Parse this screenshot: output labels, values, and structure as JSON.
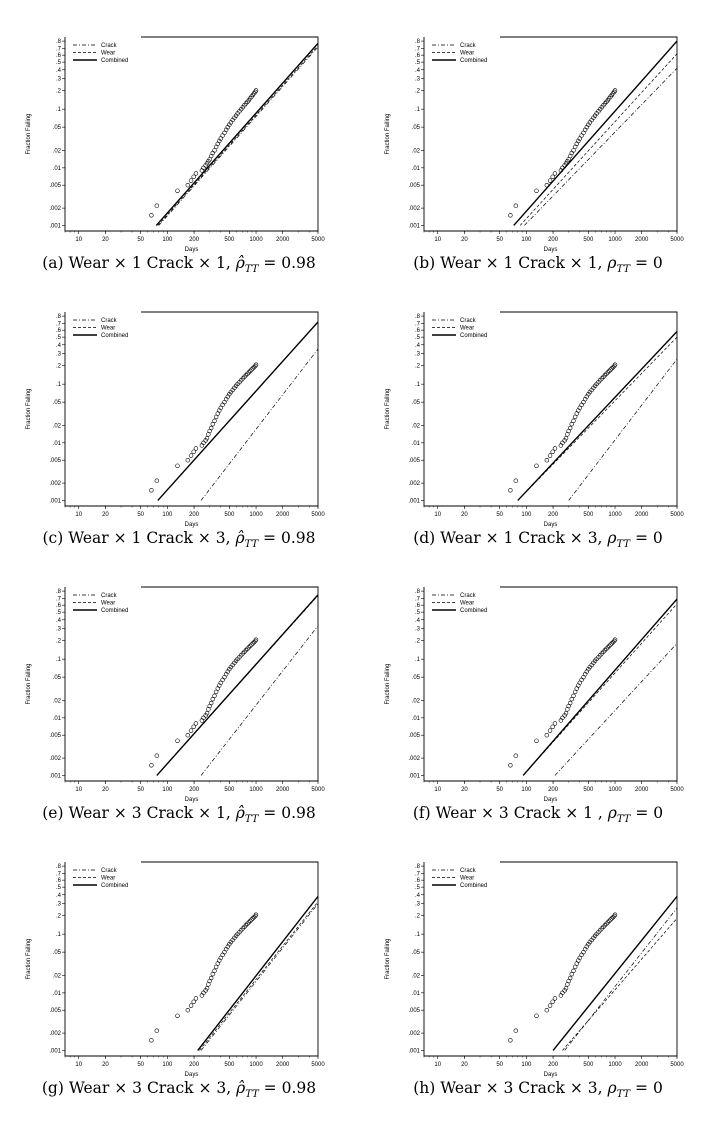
{
  "figure": {
    "panels": [
      {
        "caption": "(a) Wear × 1 Crack × 1, ρ̂TT = 0.98"
      },
      {
        "caption": "(b) Wear × 1 Crack × 1, ρTT = 0"
      },
      {
        "caption": "(c) Wear × 1 Crack × 3, ρ̂TT = 0.98"
      },
      {
        "caption": "(d) Wear × 1 Crack × 3, ρTT = 0"
      },
      {
        "caption": "(e) Wear × 3 Crack × 1, ρ̂TT = 0.98"
      },
      {
        "caption": "(f) Wear × 3 Crack × 1 , ρTT = 0"
      },
      {
        "caption": "(g) Wear × 3 Crack × 3, ρ̂TT = 0.98"
      },
      {
        "caption": "(h) Wear × 3 Crack × 3, ρTT = 0"
      }
    ]
  },
  "chart_data": [
    {
      "type": "scatter",
      "xlabel": "Days",
      "ylabel": "Fraction Failing",
      "xscale": "log",
      "yscale": "weibull",
      "xlim": [
        7,
        5000
      ],
      "ylim": [
        0.0008,
        0.85
      ],
      "x_ticks": [
        "10",
        "20",
        "50",
        "100",
        "200",
        "500",
        "1000",
        "2000",
        "5000"
      ],
      "y_ticks": [
        ".8",
        ".7",
        ".6",
        ".5",
        ".4",
        ".3",
        ".2",
        ".1",
        ".05",
        ".02",
        ".01",
        ".005",
        ".002",
        ".001"
      ],
      "legend": [
        "Crack",
        "Wear",
        "Combined"
      ],
      "legend_position": "top-left",
      "series": [
        {
          "name": "Crack",
          "style": "dash-dot",
          "x": [
            80,
            5000
          ],
          "y": [
            0.001,
            0.72
          ]
        },
        {
          "name": "Wear",
          "style": "dashed",
          "x": [
            78,
            5000
          ],
          "y": [
            0.001,
            0.74
          ]
        },
        {
          "name": "Combined",
          "style": "solid",
          "x": [
            75,
            5000
          ],
          "y": [
            0.001,
            0.77
          ]
        }
      ],
      "points_profile": "A"
    },
    {
      "type": "scatter",
      "xlabel": "Days",
      "ylabel": "Fraction Failing",
      "xscale": "log",
      "yscale": "weibull",
      "xlim": [
        7,
        5000
      ],
      "ylim": [
        0.0008,
        0.85
      ],
      "x_ticks": [
        "10",
        "20",
        "50",
        "100",
        "200",
        "500",
        "1000",
        "2000",
        "5000"
      ],
      "y_ticks": [
        ".8",
        ".7",
        ".6",
        ".5",
        ".4",
        ".3",
        ".2",
        ".1",
        ".05",
        ".02",
        ".01",
        ".005",
        ".002",
        ".001"
      ],
      "legend": [
        "Crack",
        "Wear",
        "Combined"
      ],
      "legend_position": "top-left",
      "series": [
        {
          "name": "Crack",
          "style": "dash-dot",
          "x": [
            95,
            5000
          ],
          "y": [
            0.001,
            0.42
          ]
        },
        {
          "name": "Wear",
          "style": "dashed",
          "x": [
            85,
            5000
          ],
          "y": [
            0.001,
            0.62
          ]
        },
        {
          "name": "Combined",
          "style": "solid",
          "x": [
            72,
            5000
          ],
          "y": [
            0.001,
            0.8
          ]
        }
      ],
      "points_profile": "A"
    },
    {
      "type": "scatter",
      "xlabel": "Days",
      "ylabel": "Fraction Failing",
      "xscale": "log",
      "yscale": "weibull",
      "xlim": [
        7,
        5000
      ],
      "ylim": [
        0.0008,
        0.85
      ],
      "x_ticks": [
        "10",
        "20",
        "50",
        "100",
        "200",
        "500",
        "1000",
        "2000",
        "5000"
      ],
      "y_ticks": [
        ".8",
        ".7",
        ".6",
        ".5",
        ".4",
        ".3",
        ".2",
        ".1",
        ".05",
        ".02",
        ".01",
        ".005",
        ".002",
        ".001"
      ],
      "legend": [
        "Crack",
        "Wear",
        "Combined"
      ],
      "legend_position": "top-left",
      "series": [
        {
          "name": "Crack",
          "style": "dash-dot",
          "x": [
            240,
            5000
          ],
          "y": [
            0.001,
            0.35
          ]
        },
        {
          "name": "Wear",
          "style": "dashed",
          "x": [
            78,
            5000
          ],
          "y": [
            0.001,
            0.72
          ]
        },
        {
          "name": "Combined",
          "style": "solid",
          "x": [
            78,
            5000
          ],
          "y": [
            0.001,
            0.72
          ]
        }
      ],
      "points_profile": "B"
    },
    {
      "type": "scatter",
      "xlabel": "Days",
      "ylabel": "Fraction Failing",
      "xscale": "log",
      "yscale": "weibull",
      "xlim": [
        7,
        5000
      ],
      "ylim": [
        0.0008,
        0.85
      ],
      "x_ticks": [
        "10",
        "20",
        "50",
        "100",
        "200",
        "500",
        "1000",
        "2000",
        "5000"
      ],
      "y_ticks": [
        ".8",
        ".7",
        ".6",
        ".5",
        ".4",
        ".3",
        ".2",
        ".1",
        ".05",
        ".02",
        ".01",
        ".005",
        ".002",
        ".001"
      ],
      "legend": [
        "Crack",
        "Wear",
        "Combined"
      ],
      "legend_position": "top-left",
      "series": [
        {
          "name": "Crack",
          "style": "dash-dot",
          "x": [
            300,
            5000
          ],
          "y": [
            0.001,
            0.25
          ]
        },
        {
          "name": "Wear",
          "style": "dashed",
          "x": [
            80,
            5000
          ],
          "y": [
            0.001,
            0.5
          ]
        },
        {
          "name": "Combined",
          "style": "solid",
          "x": [
            80,
            5000
          ],
          "y": [
            0.001,
            0.58
          ]
        }
      ],
      "points_profile": "B"
    },
    {
      "type": "scatter",
      "xlabel": "Days",
      "ylabel": "Fraction Failing",
      "xscale": "log",
      "yscale": "weibull",
      "xlim": [
        7,
        5000
      ],
      "ylim": [
        0.0008,
        0.85
      ],
      "x_ticks": [
        "10",
        "20",
        "50",
        "100",
        "200",
        "500",
        "1000",
        "2000",
        "5000"
      ],
      "y_ticks": [
        ".8",
        ".7",
        ".6",
        ".5",
        ".4",
        ".3",
        ".2",
        ".1",
        ".05",
        ".02",
        ".01",
        ".005",
        ".002",
        ".001"
      ],
      "legend": [
        "Crack",
        "Wear",
        "Combined"
      ],
      "legend_position": "top-left",
      "series": [
        {
          "name": "Crack",
          "style": "dash-dot",
          "x": [
            240,
            5000
          ],
          "y": [
            0.001,
            0.33
          ]
        },
        {
          "name": "Wear",
          "style": "dashed",
          "x": [
            76,
            5000
          ],
          "y": [
            0.001,
            0.74
          ]
        },
        {
          "name": "Combined",
          "style": "solid",
          "x": [
            76,
            5000
          ],
          "y": [
            0.001,
            0.75
          ]
        }
      ],
      "points_profile": "B"
    },
    {
      "type": "scatter",
      "xlabel": "Days",
      "ylabel": "Fraction Failing",
      "xscale": "log",
      "yscale": "weibull",
      "xlim": [
        7,
        5000
      ],
      "ylim": [
        0.0008,
        0.85
      ],
      "x_ticks": [
        "10",
        "20",
        "50",
        "100",
        "200",
        "500",
        "1000",
        "2000",
        "5000"
      ],
      "y_ticks": [
        ".8",
        ".7",
        ".6",
        ".5",
        ".4",
        ".3",
        ".2",
        ".1",
        ".05",
        ".02",
        ".01",
        ".005",
        ".002",
        ".001"
      ],
      "legend": [
        "Crack",
        "Wear",
        "Combined"
      ],
      "legend_position": "top-left",
      "series": [
        {
          "name": "Crack",
          "style": "dash-dot",
          "x": [
            210,
            5000
          ],
          "y": [
            0.001,
            0.18
          ]
        },
        {
          "name": "Wear",
          "style": "dashed",
          "x": [
            92,
            5000
          ],
          "y": [
            0.001,
            0.62
          ]
        },
        {
          "name": "Combined",
          "style": "solid",
          "x": [
            92,
            5000
          ],
          "y": [
            0.001,
            0.69
          ]
        }
      ],
      "points_profile": "B"
    },
    {
      "type": "scatter",
      "xlabel": "Days",
      "ylabel": "Fraction Failing",
      "xscale": "log",
      "yscale": "weibull",
      "xlim": [
        7,
        5000
      ],
      "ylim": [
        0.0008,
        0.85
      ],
      "x_ticks": [
        "10",
        "20",
        "50",
        "100",
        "200",
        "500",
        "1000",
        "2000",
        "5000"
      ],
      "y_ticks": [
        ".8",
        ".7",
        ".6",
        ".5",
        ".4",
        ".3",
        ".2",
        ".1",
        ".05",
        ".02",
        ".01",
        ".005",
        ".002",
        ".001"
      ],
      "legend": [
        "Crack",
        "Wear",
        "Combined"
      ],
      "legend_position": "top-left",
      "series": [
        {
          "name": "Crack",
          "style": "dash-dot",
          "x": [
            240,
            5000
          ],
          "y": [
            0.001,
            0.3
          ]
        },
        {
          "name": "Wear",
          "style": "dashed",
          "x": [
            230,
            5000
          ],
          "y": [
            0.001,
            0.32
          ]
        },
        {
          "name": "Combined",
          "style": "solid",
          "x": [
            220,
            5000
          ],
          "y": [
            0.001,
            0.38
          ]
        }
      ],
      "points_profile": "B"
    },
    {
      "type": "scatter",
      "xlabel": "Days",
      "ylabel": "Fraction Failing",
      "xscale": "log",
      "yscale": "weibull",
      "xlim": [
        7,
        5000
      ],
      "ylim": [
        0.0008,
        0.85
      ],
      "x_ticks": [
        "10",
        "20",
        "50",
        "100",
        "200",
        "500",
        "1000",
        "2000",
        "5000"
      ],
      "y_ticks": [
        ".8",
        ".7",
        ".6",
        ".5",
        ".4",
        ".3",
        ".2",
        ".1",
        ".05",
        ".02",
        ".01",
        ".005",
        ".002",
        ".001"
      ],
      "legend": [
        "Crack",
        "Wear",
        "Combined"
      ],
      "legend_position": "top-left",
      "series": [
        {
          "name": "Crack",
          "style": "dash-dot",
          "x": [
            270,
            5000
          ],
          "y": [
            0.001,
            0.26
          ]
        },
        {
          "name": "Wear",
          "style": "dashed",
          "x": [
            255,
            5000
          ],
          "y": [
            0.001,
            0.18
          ]
        },
        {
          "name": "Combined",
          "style": "solid",
          "x": [
            200,
            5000
          ],
          "y": [
            0.001,
            0.38
          ]
        }
      ],
      "points_profile": "B"
    }
  ],
  "point_profiles": {
    "A": {
      "x": [
        66,
        76,
        130,
        170,
        185,
        198,
        210,
        245,
        255,
        270,
        280,
        290,
        300,
        312,
        325,
        340,
        355,
        370,
        385,
        400,
        420,
        440,
        460,
        480,
        500,
        520,
        545,
        570,
        595,
        620,
        650,
        680,
        710,
        740,
        770,
        800,
        830,
        860,
        890,
        920,
        950,
        980,
        1000
      ],
      "y": [
        0.0015,
        0.0022,
        0.004,
        0.005,
        0.006,
        0.007,
        0.008,
        0.009,
        0.01,
        0.011,
        0.012,
        0.013,
        0.014,
        0.016,
        0.018,
        0.02,
        0.023,
        0.026,
        0.029,
        0.032,
        0.036,
        0.04,
        0.045,
        0.05,
        0.055,
        0.06,
        0.066,
        0.072,
        0.078,
        0.085,
        0.092,
        0.1,
        0.108,
        0.116,
        0.124,
        0.132,
        0.14,
        0.15,
        0.16,
        0.17,
        0.18,
        0.19,
        0.2
      ]
    },
    "B": {
      "x": [
        66,
        76,
        130,
        170,
        185,
        198,
        210,
        245,
        255,
        270,
        280,
        290,
        300,
        312,
        325,
        340,
        355,
        370,
        385,
        400,
        420,
        440,
        460,
        480,
        500,
        520,
        545,
        570,
        595,
        620,
        650,
        680,
        710,
        740,
        770,
        800,
        830,
        860,
        890,
        920,
        950,
        980,
        1000
      ],
      "y": [
        0.0015,
        0.0022,
        0.004,
        0.005,
        0.006,
        0.007,
        0.008,
        0.009,
        0.01,
        0.011,
        0.012,
        0.014,
        0.016,
        0.018,
        0.021,
        0.024,
        0.028,
        0.032,
        0.036,
        0.04,
        0.045,
        0.05,
        0.056,
        0.062,
        0.068,
        0.074,
        0.08,
        0.087,
        0.094,
        0.101,
        0.108,
        0.116,
        0.124,
        0.132,
        0.14,
        0.148,
        0.156,
        0.164,
        0.172,
        0.18,
        0.188,
        0.196,
        0.205
      ]
    }
  }
}
